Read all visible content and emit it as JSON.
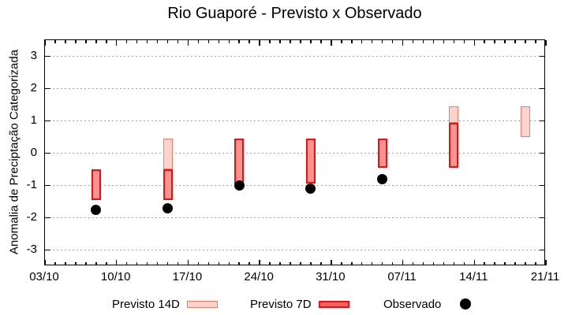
{
  "chart_data": {
    "type": "bar",
    "title": "Rio Guaporé - Previsto x Observado",
    "ylabel": "Anomalia de Preciptação Categorizada",
    "ylim": [
      -3.5,
      3.5
    ],
    "yticks": [
      3,
      2,
      1,
      0,
      -1,
      -2,
      -3
    ],
    "grid": true,
    "legend_position": "bottom",
    "x_axis": {
      "span_days": 49,
      "major_tick_every_days": 7,
      "minor_tick_every_days": 1,
      "tick_labels": [
        "03/10",
        "10/10",
        "17/10",
        "24/10",
        "31/10",
        "07/11",
        "14/11",
        "21/11"
      ]
    },
    "legend": {
      "previsto_14d": "Previsto 14D",
      "previsto_7d": "Previsto 7D",
      "observado": "Observado"
    },
    "bars": [
      {
        "date": "08/10",
        "day": 5,
        "previsto_14d": null,
        "previsto_7d": [
          -1.45,
          -0.5
        ],
        "observado": -1.75
      },
      {
        "date": "15/10",
        "day": 12,
        "previsto_14d": [
          -0.5,
          0.45
        ],
        "previsto_7d": [
          -1.45,
          -0.5
        ],
        "observado": -1.7
      },
      {
        "date": "22/10",
        "day": 19,
        "previsto_14d": null,
        "previsto_7d": [
          -0.95,
          0.45
        ],
        "observado": -1.0
      },
      {
        "date": "29/10",
        "day": 26,
        "previsto_14d": null,
        "previsto_7d": [
          -0.95,
          0.45
        ],
        "observado": -1.1
      },
      {
        "date": "05/11",
        "day": 33,
        "previsto_14d": null,
        "previsto_7d": [
          -0.45,
          0.45
        ],
        "observado": -0.8
      },
      {
        "date": "12/11",
        "day": 40,
        "previsto_14d": [
          0.95,
          1.45
        ],
        "previsto_7d": [
          -0.45,
          0.95
        ],
        "observado": null
      },
      {
        "date": "19/11",
        "day": 47,
        "previsto_14d": [
          0.5,
          1.45
        ],
        "previsto_7d": null,
        "observado": null
      }
    ]
  },
  "colors": {
    "background": "#ffffff",
    "frame": "#000000",
    "grid": "#a3a3a3",
    "previsto_14d_fill": "#fdd3cb",
    "previsto_14d_border": "#f5796b",
    "previsto_7d_fill": "#fa9292",
    "previsto_7d_border": "#f20d0d",
    "legend_7d_fill": "#f76060",
    "observado": "#000000"
  }
}
